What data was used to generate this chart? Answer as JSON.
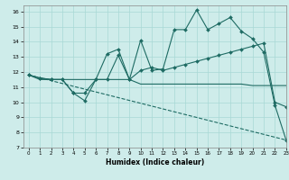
{
  "xlabel": "Humidex (Indice chaleur)",
  "xlim": [
    -0.5,
    23
  ],
  "ylim": [
    7,
    16.4
  ],
  "yticks": [
    7,
    8,
    9,
    10,
    11,
    12,
    13,
    14,
    15,
    16
  ],
  "xticks": [
    0,
    1,
    2,
    3,
    4,
    5,
    6,
    7,
    8,
    9,
    10,
    11,
    12,
    13,
    14,
    15,
    16,
    17,
    18,
    19,
    20,
    21,
    22,
    23
  ],
  "bg_color": "#ceecea",
  "grid_color": "#a8d8d5",
  "line_color": "#1e6b63",
  "lines": [
    {
      "x": [
        0,
        1,
        2,
        3,
        4,
        5,
        6,
        7,
        8,
        9,
        10,
        11,
        12,
        13,
        14,
        15,
        16,
        17,
        18,
        19,
        20,
        21,
        22,
        23
      ],
      "y": [
        11.8,
        11.6,
        11.5,
        11.5,
        10.6,
        10.1,
        11.5,
        13.2,
        13.5,
        11.5,
        14.1,
        12.1,
        12.2,
        14.8,
        14.8,
        16.1,
        14.8,
        15.2,
        15.6,
        14.7,
        14.2,
        13.3,
        9.8,
        7.5
      ],
      "marker": true
    },
    {
      "x": [
        0,
        1,
        2,
        3,
        4,
        5,
        6,
        7,
        8,
        9,
        10,
        11,
        12,
        13,
        14,
        15,
        16,
        17,
        18,
        19,
        20,
        21,
        22,
        23
      ],
      "y": [
        11.8,
        11.6,
        11.5,
        11.5,
        10.6,
        10.6,
        11.5,
        11.5,
        13.1,
        11.5,
        12.1,
        12.3,
        12.1,
        12.3,
        12.5,
        12.7,
        12.9,
        13.1,
        13.3,
        13.5,
        13.7,
        13.9,
        10.0,
        9.7
      ],
      "marker": true
    },
    {
      "x": [
        0,
        1,
        2,
        3,
        4,
        5,
        6,
        7,
        8,
        9,
        10,
        11,
        12,
        13,
        14,
        15,
        16,
        17,
        18,
        19,
        20,
        21,
        22,
        23
      ],
      "y": [
        11.8,
        11.5,
        11.5,
        11.5,
        11.5,
        11.5,
        11.5,
        11.5,
        11.5,
        11.5,
        11.2,
        11.2,
        11.2,
        11.2,
        11.2,
        11.2,
        11.2,
        11.2,
        11.2,
        11.2,
        11.1,
        11.1,
        11.1,
        11.1
      ],
      "marker": false
    },
    {
      "x": [
        0,
        23
      ],
      "y": [
        11.8,
        7.5
      ],
      "marker": false,
      "dashed": true
    }
  ]
}
